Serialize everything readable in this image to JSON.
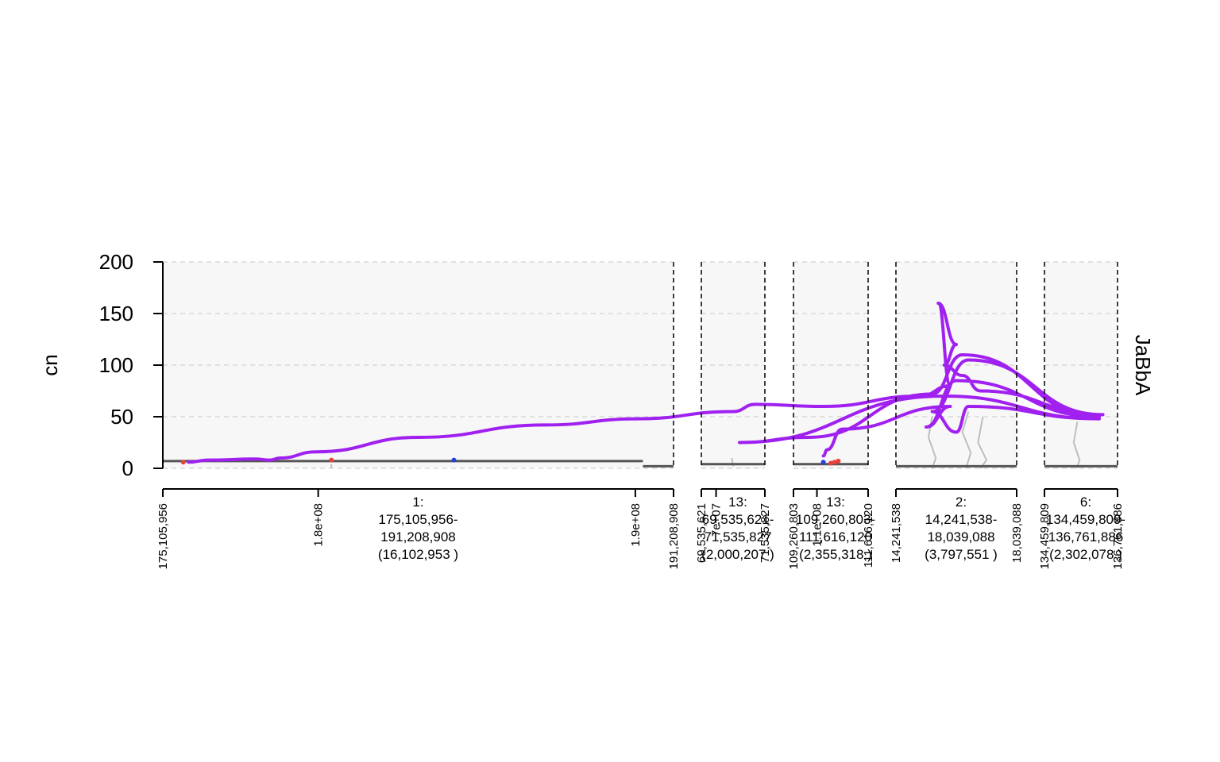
{
  "chart_data": {
    "type": "line",
    "ylabel": "cn",
    "track_label": "JaBbA",
    "ylim": [
      0,
      200
    ],
    "y_ticks": [
      0,
      50,
      100,
      150,
      200
    ],
    "grid": true,
    "colors": {
      "walk": "#a020f0",
      "gray_path": "#bebebe",
      "segment": "#555555",
      "loose_end_red": "#e8413c",
      "loose_end_blue": "#2a3fd6",
      "panel_bg": "#f7f7f7"
    },
    "windows": [
      {
        "label": [
          "1:",
          "175,105,956-",
          "191,208,908",
          "(16,102,953 )"
        ],
        "ticks": [
          {
            "label": "175,105,956",
            "pos": 0.0
          },
          {
            "label": "1.8e+08",
            "pos": 0.3042
          },
          {
            "label": "1.9e+08",
            "pos": 0.9252
          },
          {
            "label": "191,208,908",
            "pos": 1.0
          }
        ]
      },
      {
        "label": [
          "13:",
          "69,535,621-",
          "71,535,827",
          "(2,000,207 )"
        ],
        "ticks": [
          {
            "label": "69,535,621",
            "pos": 0.0
          },
          {
            "label": "7e+07",
            "pos": 0.232
          },
          {
            "label": "71,535,827",
            "pos": 1.0
          }
        ]
      },
      {
        "label": [
          "13:",
          "109,260,803-",
          "111,616,120",
          "(2,355,318 )"
        ],
        "ticks": [
          {
            "label": "109,260,803",
            "pos": 0.0
          },
          {
            "label": "1.1e+08",
            "pos": 0.314
          },
          {
            "label": "111,616,120",
            "pos": 1.0
          }
        ]
      },
      {
        "label": [
          "2:",
          "14,241,538-",
          "18,039,088",
          "(3,797,551 )"
        ],
        "ticks": [
          {
            "label": "14,241,538",
            "pos": 0.0
          },
          {
            "label": "18,039,088",
            "pos": 1.0
          }
        ]
      },
      {
        "label": [
          "6:",
          "134,459,809-",
          "136,761,886",
          "(2,302,078 )"
        ],
        "ticks": [
          {
            "label": "134,459,809",
            "pos": 0.0
          },
          {
            "label": "136,761,886",
            "pos": 1.0
          }
        ]
      }
    ],
    "segments": [
      {
        "window": 0,
        "x0": 0.0,
        "x1": 0.94,
        "cn": 7
      },
      {
        "window": 0,
        "x0": 0.94,
        "x1": 1.0,
        "cn": 2
      },
      {
        "window": 1,
        "x0": 0.0,
        "x1": 1.0,
        "cn": 4
      },
      {
        "window": 2,
        "x0": 0.0,
        "x1": 1.0,
        "cn": 4
      },
      {
        "window": 3,
        "x0": 0.0,
        "x1": 1.0,
        "cn": 2
      },
      {
        "window": 4,
        "x0": 0.0,
        "x1": 1.0,
        "cn": 2
      }
    ],
    "walk_path": [
      [
        0,
        0.05,
        6
      ],
      [
        0,
        0.09,
        8
      ],
      [
        0,
        0.18,
        9
      ],
      [
        0,
        0.21,
        8
      ],
      [
        0,
        0.23,
        10
      ],
      [
        0,
        0.3,
        16
      ],
      [
        0,
        0.5,
        30
      ],
      [
        0,
        0.75,
        42
      ],
      [
        0,
        0.93,
        48
      ],
      [
        1,
        0.5,
        55
      ],
      [
        1,
        0.85,
        62
      ],
      [
        2,
        0.4,
        60
      ],
      [
        3,
        0.2,
        70
      ],
      [
        3,
        0.45,
        80
      ],
      [
        3,
        0.35,
        160
      ],
      [
        3,
        0.5,
        120
      ],
      [
        3,
        0.4,
        100
      ],
      [
        3,
        0.55,
        90
      ],
      [
        3,
        0.7,
        75
      ],
      [
        4,
        0.8,
        52
      ],
      [
        3,
        0.6,
        105
      ],
      [
        3,
        0.3,
        55
      ],
      [
        3,
        0.5,
        35
      ],
      [
        3,
        0.6,
        60
      ],
      [
        4,
        0.75,
        48
      ],
      [
        3,
        0.4,
        70
      ],
      [
        1,
        0.6,
        25
      ],
      [
        2,
        0.2,
        30
      ],
      [
        3,
        0.3,
        72
      ],
      [
        3,
        0.55,
        110
      ],
      [
        4,
        0.75,
        50
      ],
      [
        3,
        0.5,
        85
      ],
      [
        3,
        0.25,
        40
      ],
      [
        3,
        0.45,
        60
      ],
      [
        2,
        0.65,
        38
      ],
      [
        2,
        0.45,
        18
      ],
      [
        2,
        0.4,
        12
      ]
    ],
    "markers": [
      {
        "window": 0,
        "x": 0.04,
        "cn": 6,
        "color": "red"
      },
      {
        "window": 0,
        "x": 0.33,
        "cn": 8,
        "color": "red"
      },
      {
        "window": 0,
        "x": 0.57,
        "cn": 8,
        "color": "blue"
      },
      {
        "window": 2,
        "x": 0.4,
        "cn": 6,
        "color": "blue"
      },
      {
        "window": 2,
        "x": 0.5,
        "cn": 5,
        "color": "red"
      },
      {
        "window": 2,
        "x": 0.55,
        "cn": 6,
        "color": "red"
      },
      {
        "window": 2,
        "x": 0.6,
        "cn": 7,
        "color": "red"
      }
    ]
  }
}
